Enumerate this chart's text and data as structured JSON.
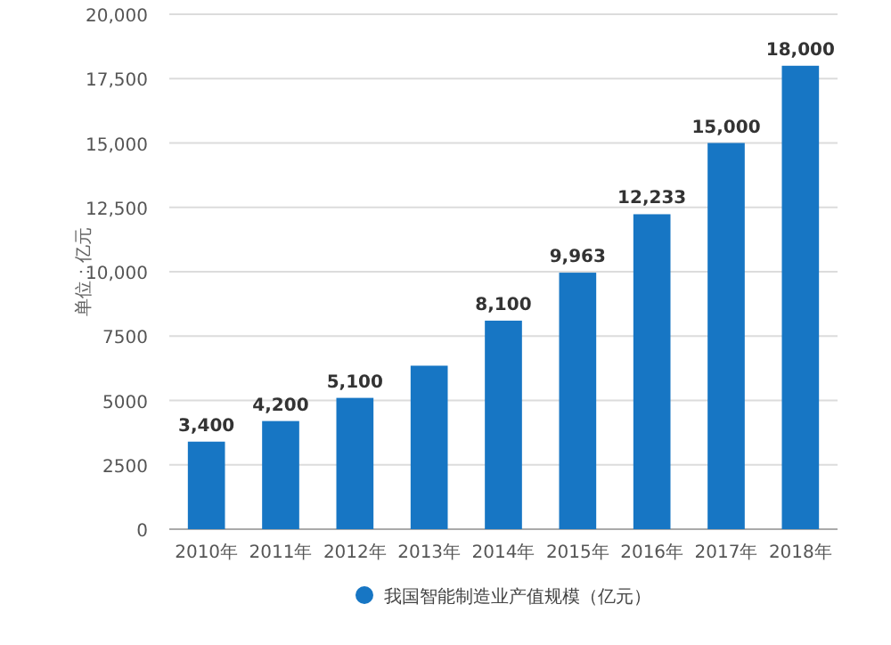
{
  "chart_data": {
    "type": "bar",
    "ylabel": "单位：亿元",
    "categories": [
      "2010年",
      "2011年",
      "2012年",
      "2013年",
      "2014年",
      "2015年",
      "2016年",
      "2017年",
      "2018年"
    ],
    "series": [
      {
        "name": "我国智能制造业产值规模（亿元）",
        "color": "#1776c4",
        "values": [
          3400,
          4200,
          5100,
          6350,
          8100,
          9963,
          12233,
          15000,
          18000
        ],
        "value_labels": [
          "3,400",
          "4,200",
          "5,100",
          null,
          "8,100",
          "9,963",
          "12,233",
          "15,000",
          "18,000"
        ]
      }
    ],
    "ylim": [
      0,
      20000
    ],
    "yticks": [
      0,
      2500,
      5000,
      7500,
      {
        "value": 10000,
        "label": "10,000"
      },
      {
        "value": 12500,
        "label": "12,500"
      },
      {
        "value": 15000,
        "label": "15,000"
      },
      {
        "value": 17500,
        "label": "17,500"
      },
      {
        "value": 20000,
        "label": "20,000"
      }
    ],
    "grid": "y",
    "legend": "bottom"
  }
}
